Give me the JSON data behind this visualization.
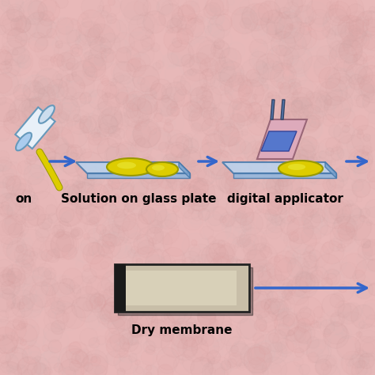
{
  "background_color": "#e8b8b8",
  "background_texture": true,
  "arrow_color": "#3366cc",
  "arrow_lw": 3,
  "labels": {
    "solution_on_glass": "Solution on glass plate",
    "digital_applicator": "digital applicator",
    "dry_membrane": "Dry membrane",
    "partial_label": "on"
  },
  "label_fontsize": 11,
  "label_fontweight": "bold",
  "plate_color": "#b8d4f0",
  "plate_edge_color": "#4477aa",
  "solution_color": "#ddcc00",
  "solution_edge": "#999900",
  "cylinder_fill": "#e8f0f8",
  "cylinder_edge": "#6699bb",
  "applicator_body": "#cc8899",
  "applicator_front": "#5577aa",
  "applicator_top": "#6688bb"
}
